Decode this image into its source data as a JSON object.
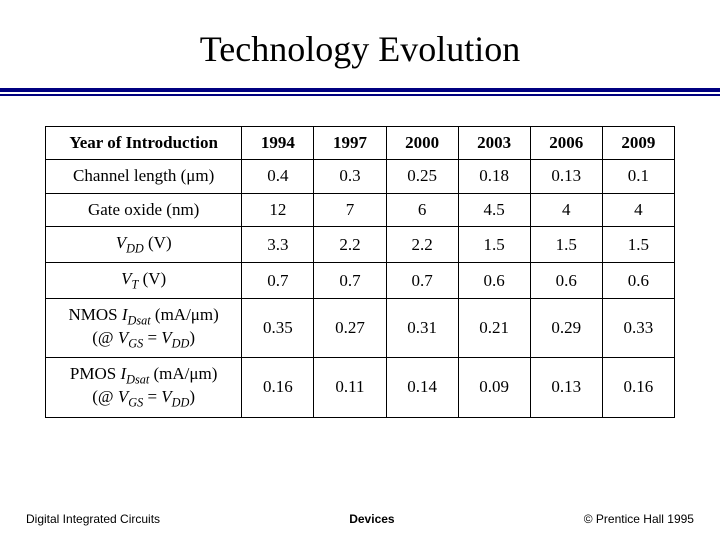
{
  "title": "Technology Evolution",
  "divider_color": "#000080",
  "table": {
    "columns": [
      "1994",
      "1997",
      "2000",
      "2003",
      "2006",
      "2009"
    ],
    "header_label": "Year of Introduction",
    "rows": [
      {
        "label_html": "Channel length (μm)",
        "cells": [
          "0.4",
          "0.3",
          "0.25",
          "0.18",
          "0.13",
          "0.1"
        ],
        "tall": false
      },
      {
        "label_html": "Gate oxide (nm)",
        "cells": [
          "12",
          "7",
          "6",
          "4.5",
          "4",
          "4"
        ],
        "tall": false
      },
      {
        "label_html": "<span class='ital'>V</span><span class='sub'>DD</span> (V)",
        "cells": [
          "3.3",
          "2.2",
          "2.2",
          "1.5",
          "1.5",
          "1.5"
        ],
        "tall": false
      },
      {
        "label_html": "<span class='ital'>V</span><span class='sub'>T</span> (V)",
        "cells": [
          "0.7",
          "0.7",
          "0.7",
          "0.6",
          "0.6",
          "0.6"
        ],
        "tall": false
      },
      {
        "label_html": "NMOS <span class='ital'>I</span><span class='sub'>Dsat</span> (mA/μm)<br>(@ <span class='ital'>V</span><span class='sub'>GS</span> = <span class='ital'>V</span><span class='sub'>DD</span>)",
        "cells": [
          "0.35",
          "0.27",
          "0.31",
          "0.21",
          "0.29",
          "0.33"
        ],
        "tall": true
      },
      {
        "label_html": "PMOS <span class='ital'>I</span><span class='sub'>Dsat</span> (mA/μm)<br>(@ <span class='ital'>V</span><span class='sub'>GS</span> = <span class='ital'>V</span><span class='sub'>DD</span>)",
        "cells": [
          "0.16",
          "0.11",
          "0.14",
          "0.09",
          "0.13",
          "0.16"
        ],
        "tall": true
      }
    ],
    "border_color": "#000000",
    "cell_font_size": 17
  },
  "footer": {
    "left": "Digital Integrated Circuits",
    "middle": "Devices",
    "right": "© Prentice Hall 1995"
  }
}
